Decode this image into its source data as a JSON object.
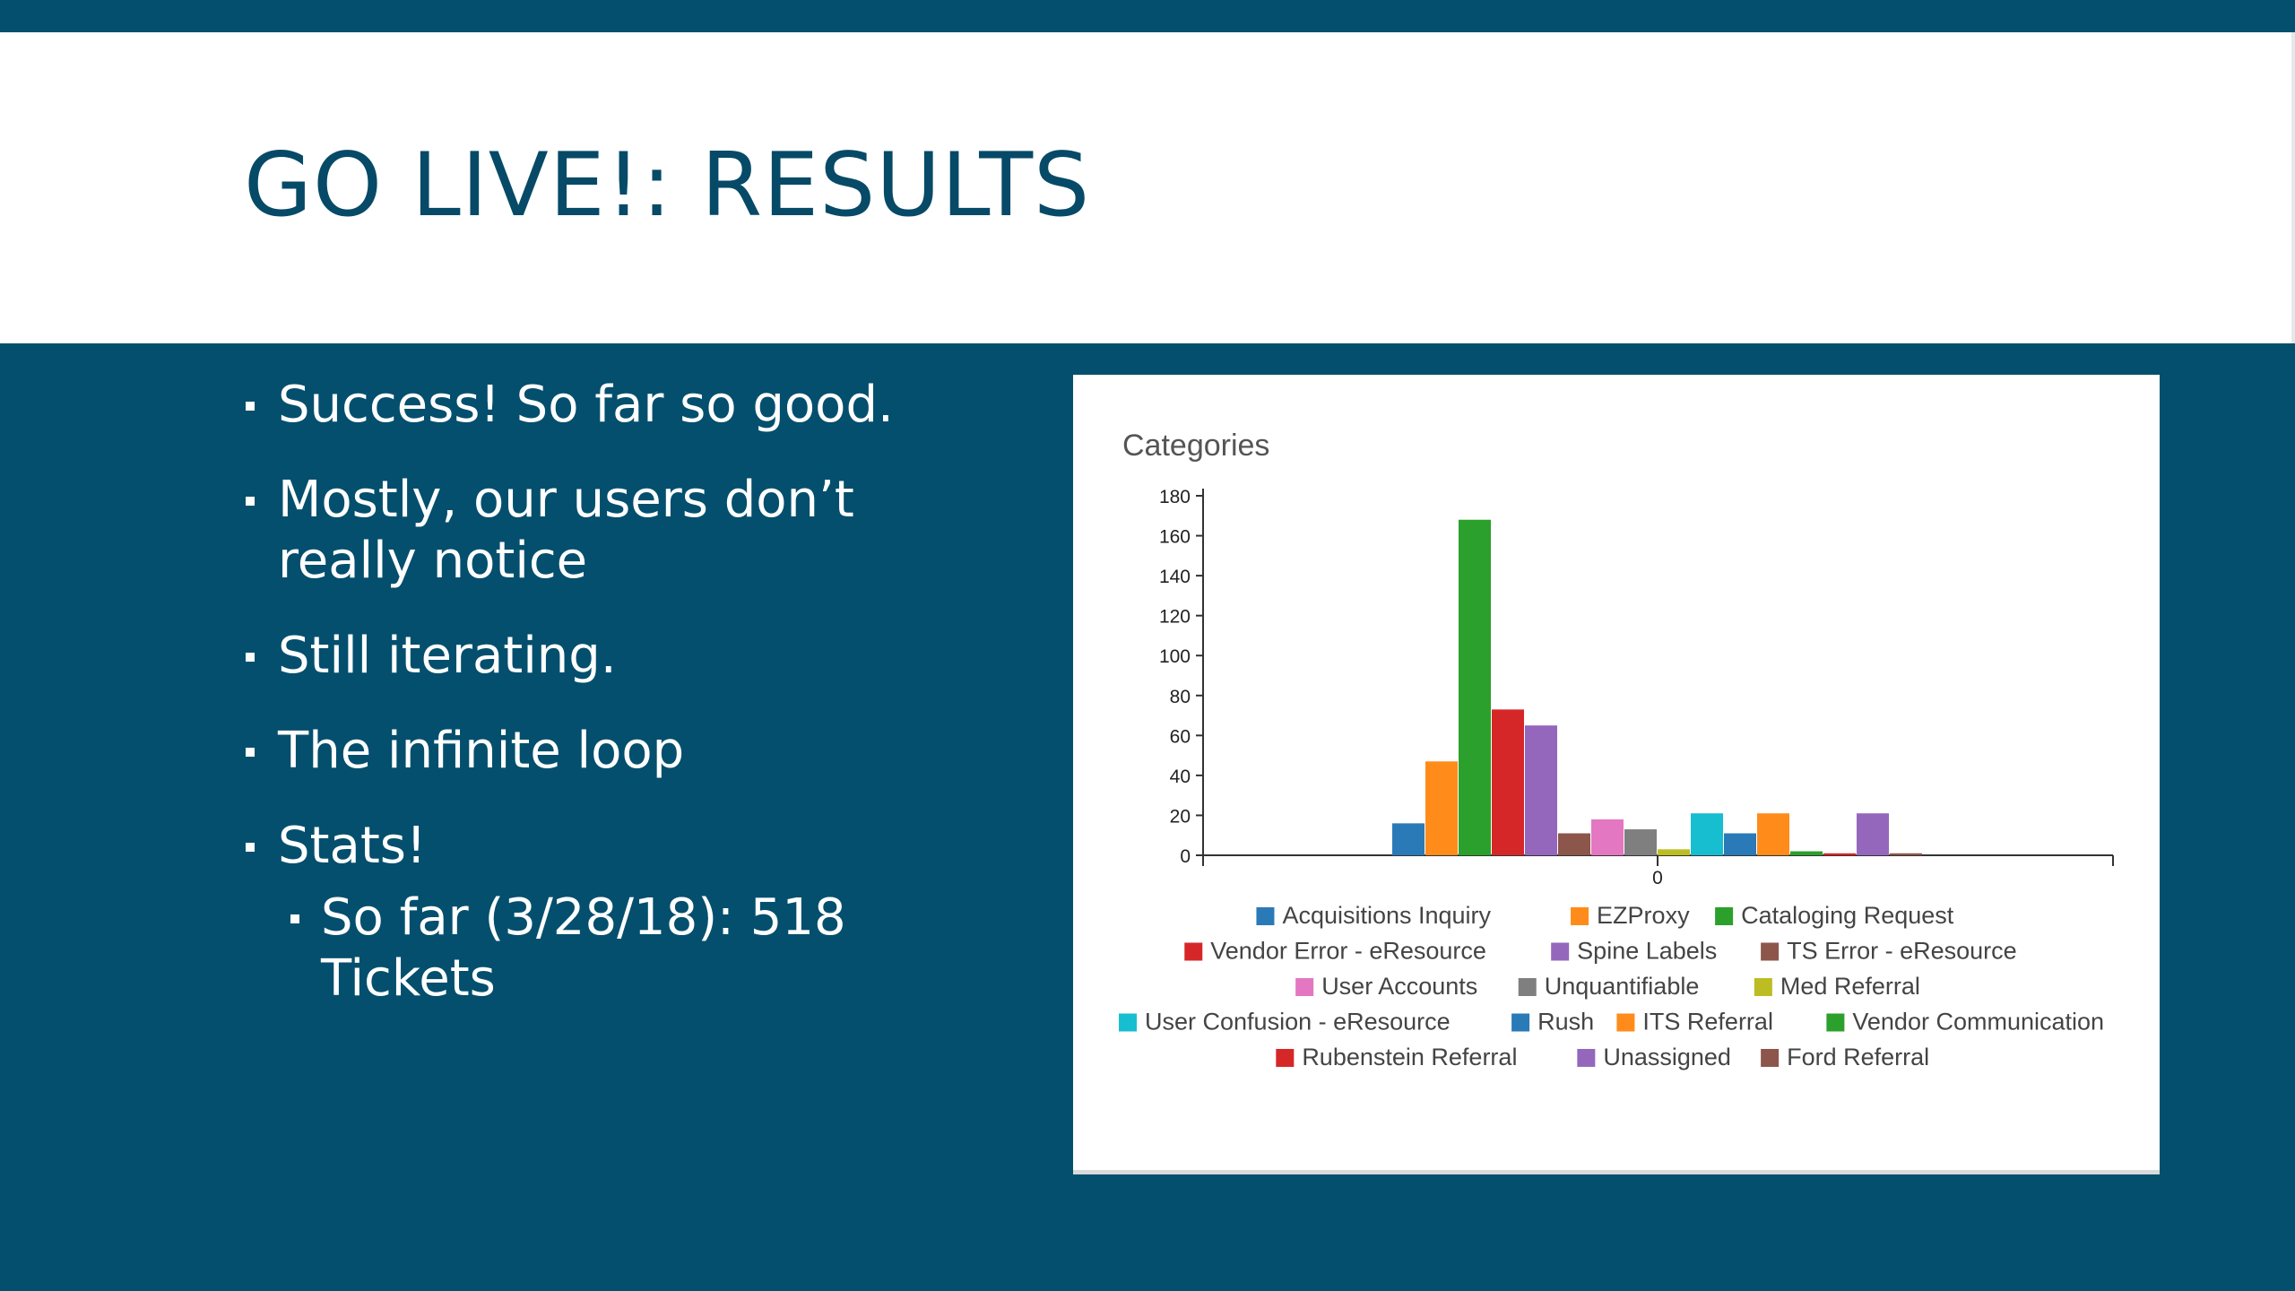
{
  "slide": {
    "title": "GO LIVE!: RESULTS",
    "bullets": [
      "Success! So far so good.",
      "Mostly, our users don’t really notice",
      "Still iterating.",
      "The infinite loop",
      "Stats!"
    ],
    "sub_bullet": "So far (3/28/18): 518 Tickets"
  },
  "chart_data": {
    "type": "bar",
    "title": "Categories",
    "categories": [
      "0"
    ],
    "ylim": [
      0,
      180
    ],
    "yticks": [
      0,
      20,
      40,
      60,
      80,
      100,
      120,
      140,
      160,
      180
    ],
    "legend_position": "bottom",
    "series": [
      {
        "name": "Acquisitions Inquiry",
        "value": 16,
        "color": "#2a7ab8"
      },
      {
        "name": "EZProxy",
        "value": 47,
        "color": "#ff8c1a"
      },
      {
        "name": "Cataloging Request",
        "value": 168,
        "color": "#2ca02c"
      },
      {
        "name": "Vendor Error - eResource",
        "value": 73,
        "color": "#d62728"
      },
      {
        "name": "Spine Labels",
        "value": 65,
        "color": "#9467bd"
      },
      {
        "name": "TS Error - eResource",
        "value": 11,
        "color": "#8c564b"
      },
      {
        "name": "User Accounts",
        "value": 18,
        "color": "#e377c2"
      },
      {
        "name": "Unquantifiable",
        "value": 13,
        "color": "#7f7f7f"
      },
      {
        "name": "Med Referral",
        "value": 3,
        "color": "#bcbd22"
      },
      {
        "name": "User Confusion - eResource",
        "value": 21,
        "color": "#17becf"
      },
      {
        "name": "Rush",
        "value": 11,
        "color": "#2a7ab8"
      },
      {
        "name": "ITS Referral",
        "value": 21,
        "color": "#ff8c1a"
      },
      {
        "name": "Vendor Communication",
        "value": 2,
        "color": "#2ca02c"
      },
      {
        "name": "Rubenstein Referral",
        "value": 1,
        "color": "#d62728"
      },
      {
        "name": "Unassigned",
        "value": 21,
        "color": "#9467bd"
      },
      {
        "name": "Ford Referral",
        "value": 1,
        "color": "#8c564b"
      }
    ]
  }
}
